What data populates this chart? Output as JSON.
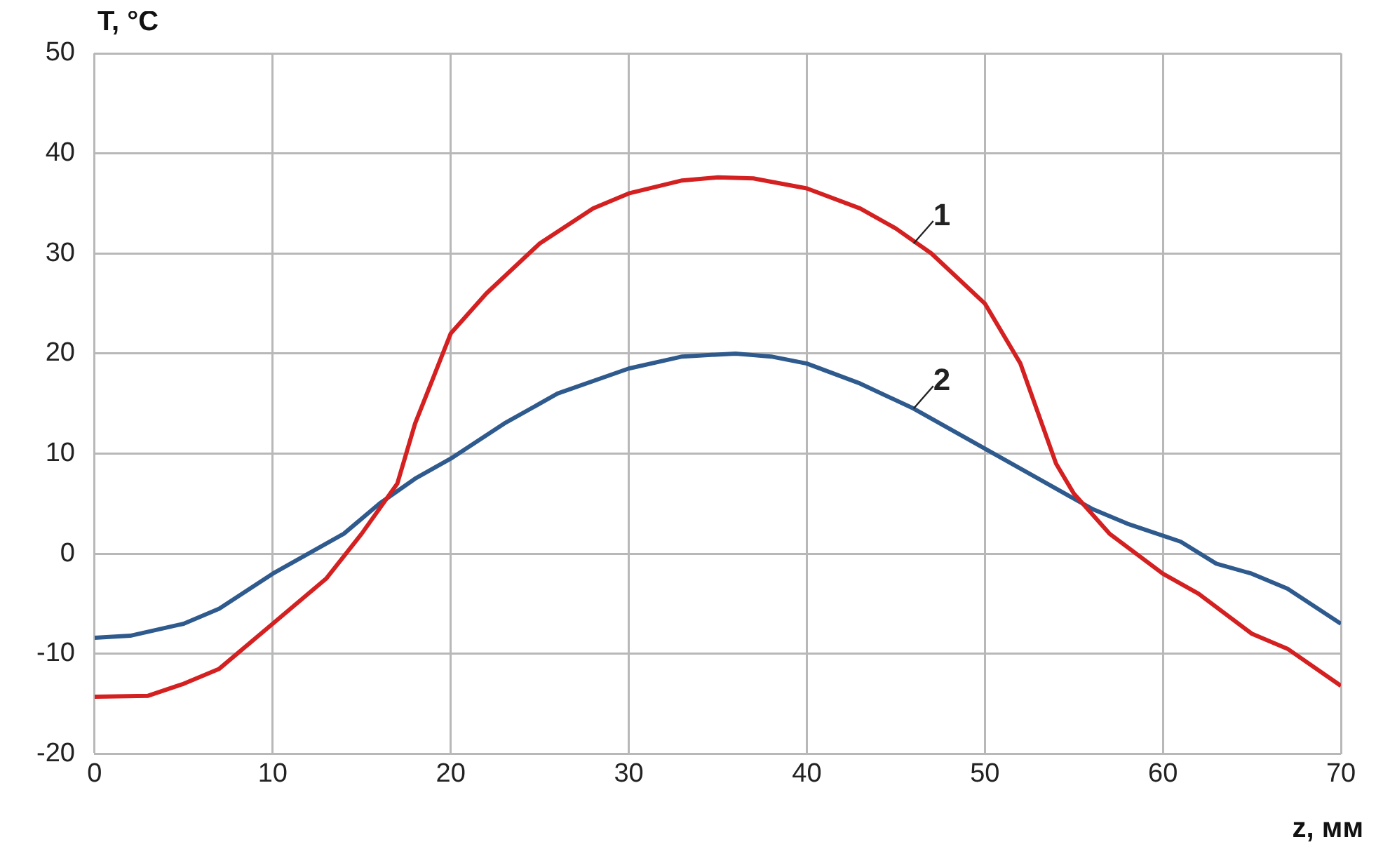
{
  "chart_data": {
    "type": "line",
    "xlabel": "z, мм",
    "ylabel": "T, °C",
    "xlim": [
      0,
      70
    ],
    "xticks": [
      0,
      10,
      20,
      30,
      40,
      50,
      60,
      70
    ],
    "ylim": [
      -20,
      50
    ],
    "yticks": [
      -20,
      -10,
      0,
      10,
      20,
      30,
      40,
      50
    ],
    "grid": true,
    "legend": false,
    "marker": "none",
    "line_style": "solid",
    "series": [
      {
        "x": [
          0,
          3,
          5,
          7,
          10,
          13,
          15,
          17,
          18,
          19,
          20,
          22,
          25,
          28,
          30,
          33,
          35,
          37,
          40,
          43,
          45,
          47,
          50,
          52,
          53,
          54,
          55,
          57,
          60,
          62,
          65,
          67,
          70
        ],
        "values": [
          -14.3,
          -14.2,
          -13,
          -11.5,
          -7,
          -2.5,
          2,
          7,
          13,
          17.5,
          22,
          26,
          31,
          34.5,
          36,
          37.3,
          37.6,
          37.5,
          36.5,
          34.5,
          32.5,
          30,
          25,
          19,
          14,
          9,
          6,
          2,
          -2,
          -4,
          -8,
          -9.5,
          -13.2
        ],
        "color": "#d42020"
      },
      {
        "x": [
          0,
          2,
          5,
          7,
          10,
          12,
          14,
          16,
          18,
          20,
          23,
          26,
          30,
          33,
          36,
          38,
          40,
          43,
          46,
          50,
          53,
          56,
          58,
          61,
          63,
          65,
          67,
          70
        ],
        "values": [
          -8.4,
          -8.2,
          -7,
          -5.5,
          -2,
          0,
          2,
          5,
          7.5,
          9.5,
          13,
          16,
          18.5,
          19.7,
          20,
          19.7,
          19,
          17,
          14.5,
          10.5,
          7.5,
          4.5,
          3,
          1.2,
          -1,
          -2,
          -3.5,
          -7
        ],
        "color": "#2e5a8e"
      }
    ],
    "annotations": [
      {
        "text": "1",
        "x": 46,
        "y": 31
      },
      {
        "text": "2",
        "x": 46,
        "y": 14.5
      }
    ]
  }
}
